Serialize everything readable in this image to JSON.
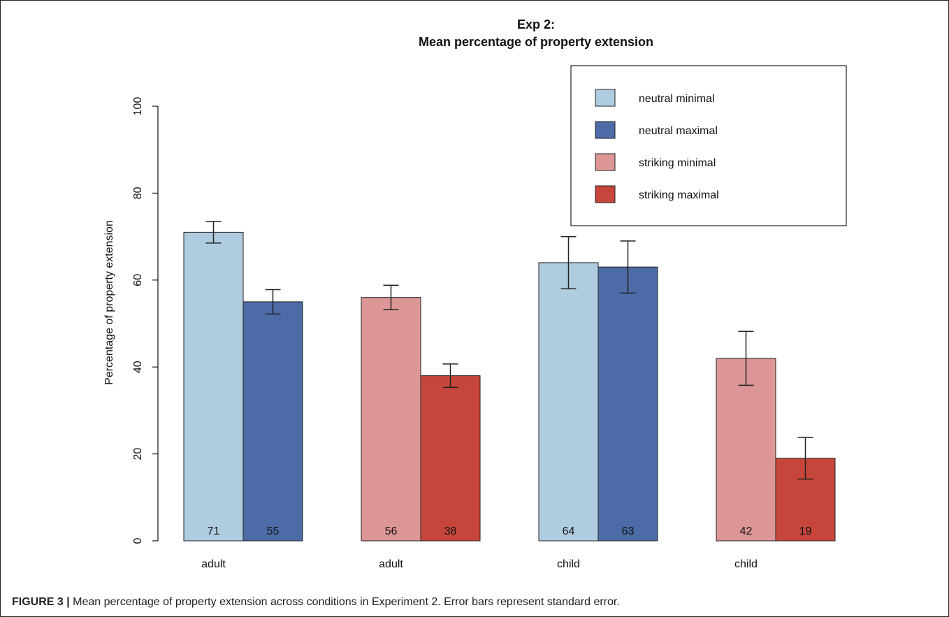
{
  "chart_data": {
    "type": "bar",
    "title": [
      "Exp 2:",
      "Mean percentage of property extension"
    ],
    "ylabel": "Percentage of property extension",
    "ylim": [
      0,
      100
    ],
    "yticks": [
      0,
      20,
      40,
      60,
      80,
      100
    ],
    "grid": false,
    "legend_position": "top-right",
    "legend": [
      {
        "name": "neutral minimal",
        "color": "#b0cce1"
      },
      {
        "name": "neutral maximal",
        "color": "#4d6ba7"
      },
      {
        "name": "striking minimal",
        "color": "#dc9695"
      },
      {
        "name": "striking maximal",
        "color": "#c7463b"
      }
    ],
    "groups": [
      {
        "label": "adult",
        "bars": [
          {
            "series": "neutral minimal",
            "value": 71,
            "label": "71",
            "error": [
              68.5,
              73.5
            ]
          },
          {
            "series": "neutral maximal",
            "value": 55,
            "label": "55",
            "error": [
              52.2,
              57.8
            ]
          }
        ]
      },
      {
        "label": "adult",
        "bars": [
          {
            "series": "striking minimal",
            "value": 56,
            "label": "56",
            "error": [
              53.2,
              58.8
            ]
          },
          {
            "series": "striking maximal",
            "value": 38,
            "label": "38",
            "error": [
              35.3,
              40.7
            ]
          }
        ]
      },
      {
        "label": "child",
        "bars": [
          {
            "series": "neutral minimal",
            "value": 64,
            "label": "64",
            "error": [
              58,
              70
            ]
          },
          {
            "series": "neutral maximal",
            "value": 63,
            "label": "63",
            "error": [
              57,
              69
            ]
          }
        ]
      },
      {
        "label": "child",
        "bars": [
          {
            "series": "striking minimal",
            "value": 42,
            "label": "42",
            "error": [
              35.8,
              48.2
            ]
          },
          {
            "series": "striking maximal",
            "value": 19,
            "label": "19",
            "error": [
              14.2,
              23.8
            ]
          }
        ]
      }
    ]
  },
  "caption": {
    "label": "FIGURE 3 |",
    "text": " Mean percentage of property extension across conditions in Experiment 2. Error bars represent standard error."
  }
}
